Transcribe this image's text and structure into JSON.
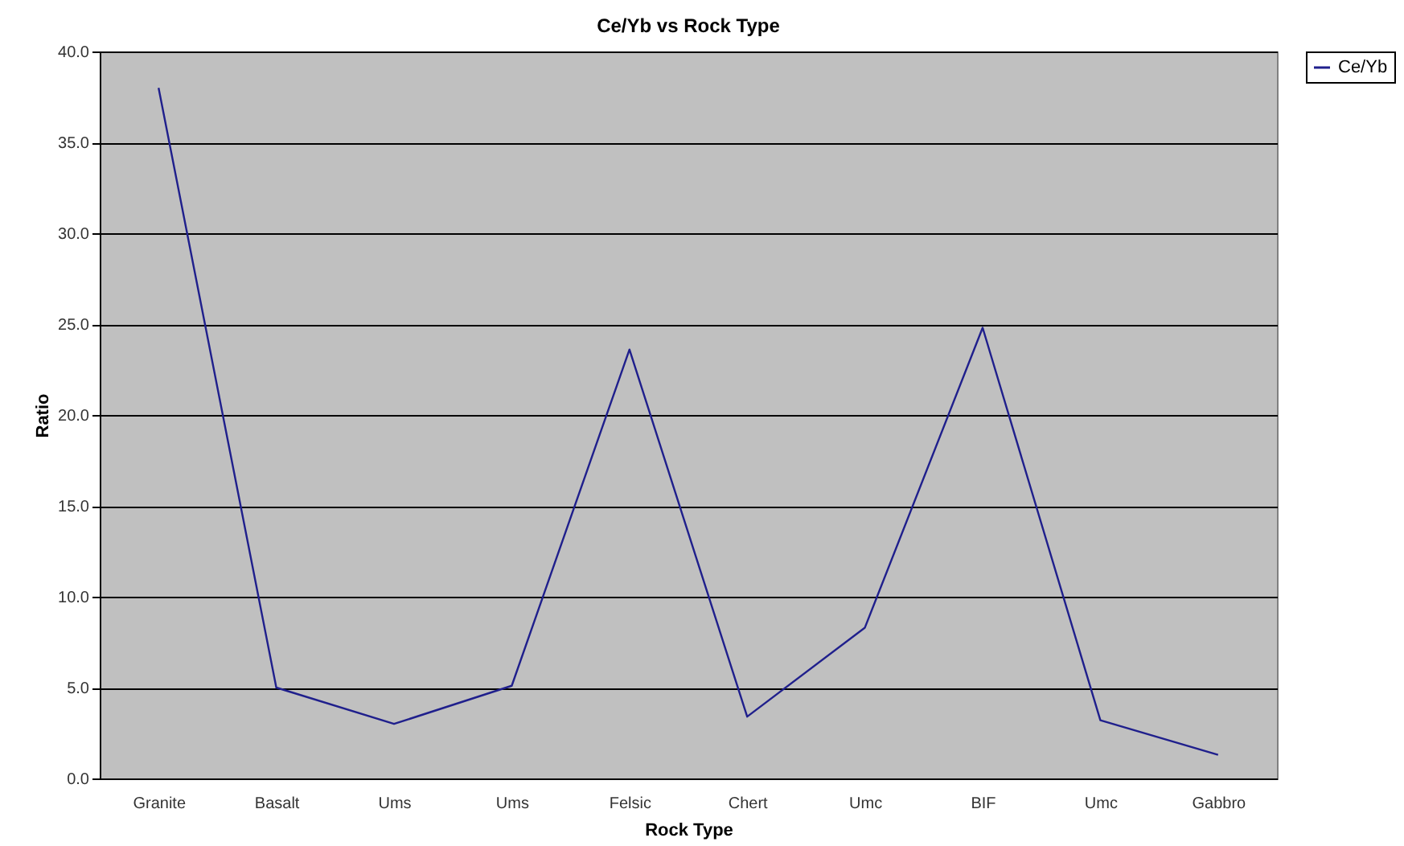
{
  "chart_data": {
    "type": "line",
    "title": "Ce/Yb vs Rock Type",
    "xlabel": "Rock Type",
    "ylabel": "Ratio",
    "categories": [
      "Granite",
      "Basalt",
      "Ums",
      "Ums",
      "Felsic",
      "Chert",
      "Umc",
      "BIF",
      "Umc",
      "Gabbro"
    ],
    "series": [
      {
        "name": "Ce/Yb",
        "color": "#1f1f8c",
        "values": [
          38.0,
          5.0,
          3.0,
          5.1,
          23.6,
          3.4,
          8.3,
          24.8,
          3.2,
          1.3
        ]
      }
    ],
    "ylim": [
      0,
      40
    ],
    "yticks": [
      {
        "value": 0,
        "label": "0.0"
      },
      {
        "value": 5,
        "label": "5.0"
      },
      {
        "value": 10,
        "label": "10.0"
      },
      {
        "value": 15,
        "label": "15.0"
      },
      {
        "value": 20,
        "label": "20.0"
      },
      {
        "value": 25,
        "label": "25.0"
      },
      {
        "value": 30,
        "label": "30.0"
      },
      {
        "value": 35,
        "label": "35.0"
      },
      {
        "value": 40,
        "label": "40.0"
      }
    ],
    "grid": "y",
    "legend": "right",
    "marker": "none",
    "line_style": "solid"
  }
}
